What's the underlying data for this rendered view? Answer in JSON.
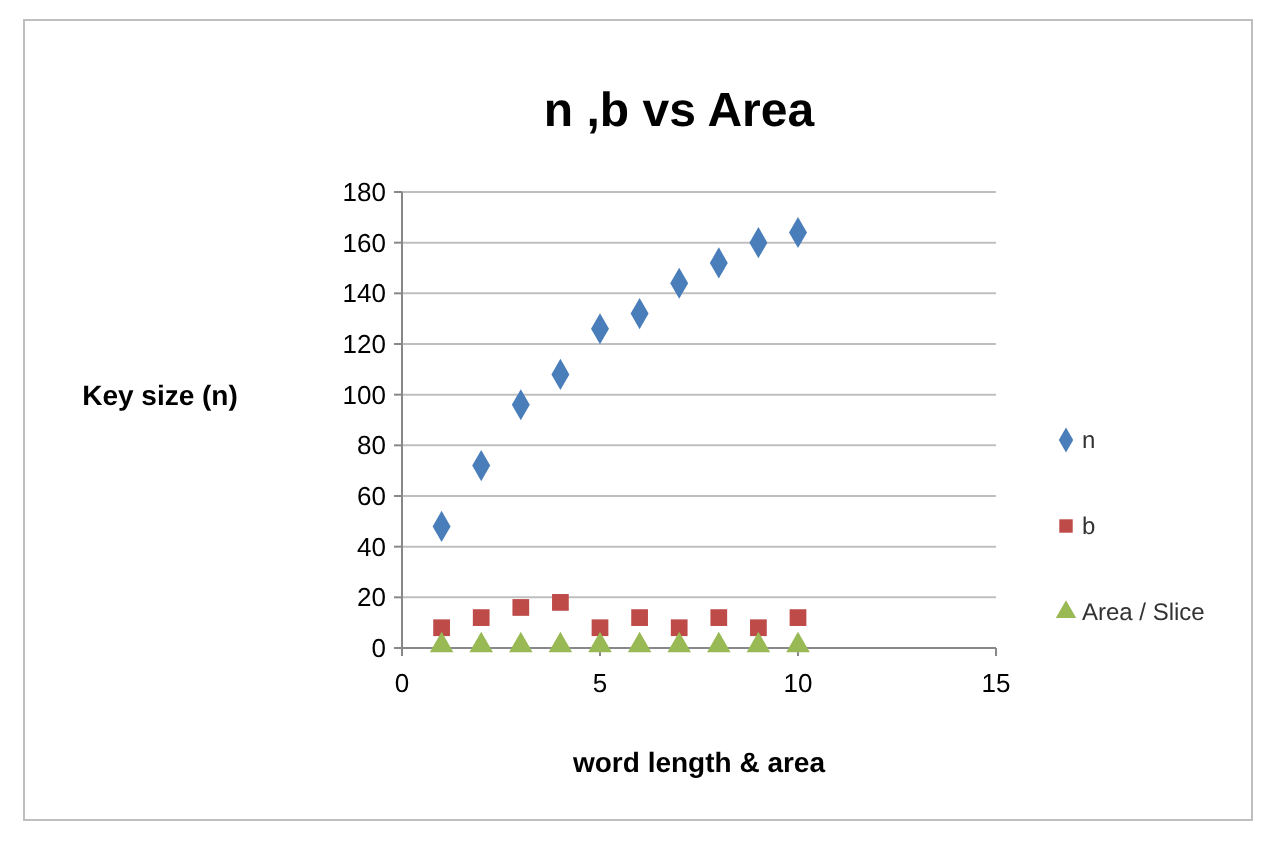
{
  "chart_data": {
    "type": "scatter",
    "title": "n ,b vs Area",
    "xlabel": "word length & area",
    "ylabel": "Key size (n)",
    "x": [
      1,
      2,
      3,
      4,
      5,
      6,
      7,
      8,
      9,
      10
    ],
    "series": [
      {
        "name": "n",
        "color": "#4a7ebb",
        "marker": "diamond",
        "values": [
          48,
          72,
          96,
          108,
          126,
          132,
          144,
          152,
          160,
          164
        ]
      },
      {
        "name": "b",
        "color": "#be4b48",
        "marker": "square",
        "values": [
          8,
          12,
          16,
          18,
          8,
          12,
          8,
          12,
          8,
          12
        ]
      },
      {
        "name": "Area / Slice",
        "color": "#98b954",
        "marker": "triangle",
        "values": [
          1,
          1,
          1,
          1,
          1,
          1,
          1,
          1,
          1,
          1
        ]
      }
    ],
    "xlim": [
      0,
      15
    ],
    "xticks": [
      0,
      5,
      10,
      15
    ],
    "ylim": [
      0,
      180
    ],
    "yticks": [
      0,
      20,
      40,
      60,
      80,
      100,
      120,
      140,
      160,
      180
    ],
    "grid": "y",
    "legend": "right"
  }
}
